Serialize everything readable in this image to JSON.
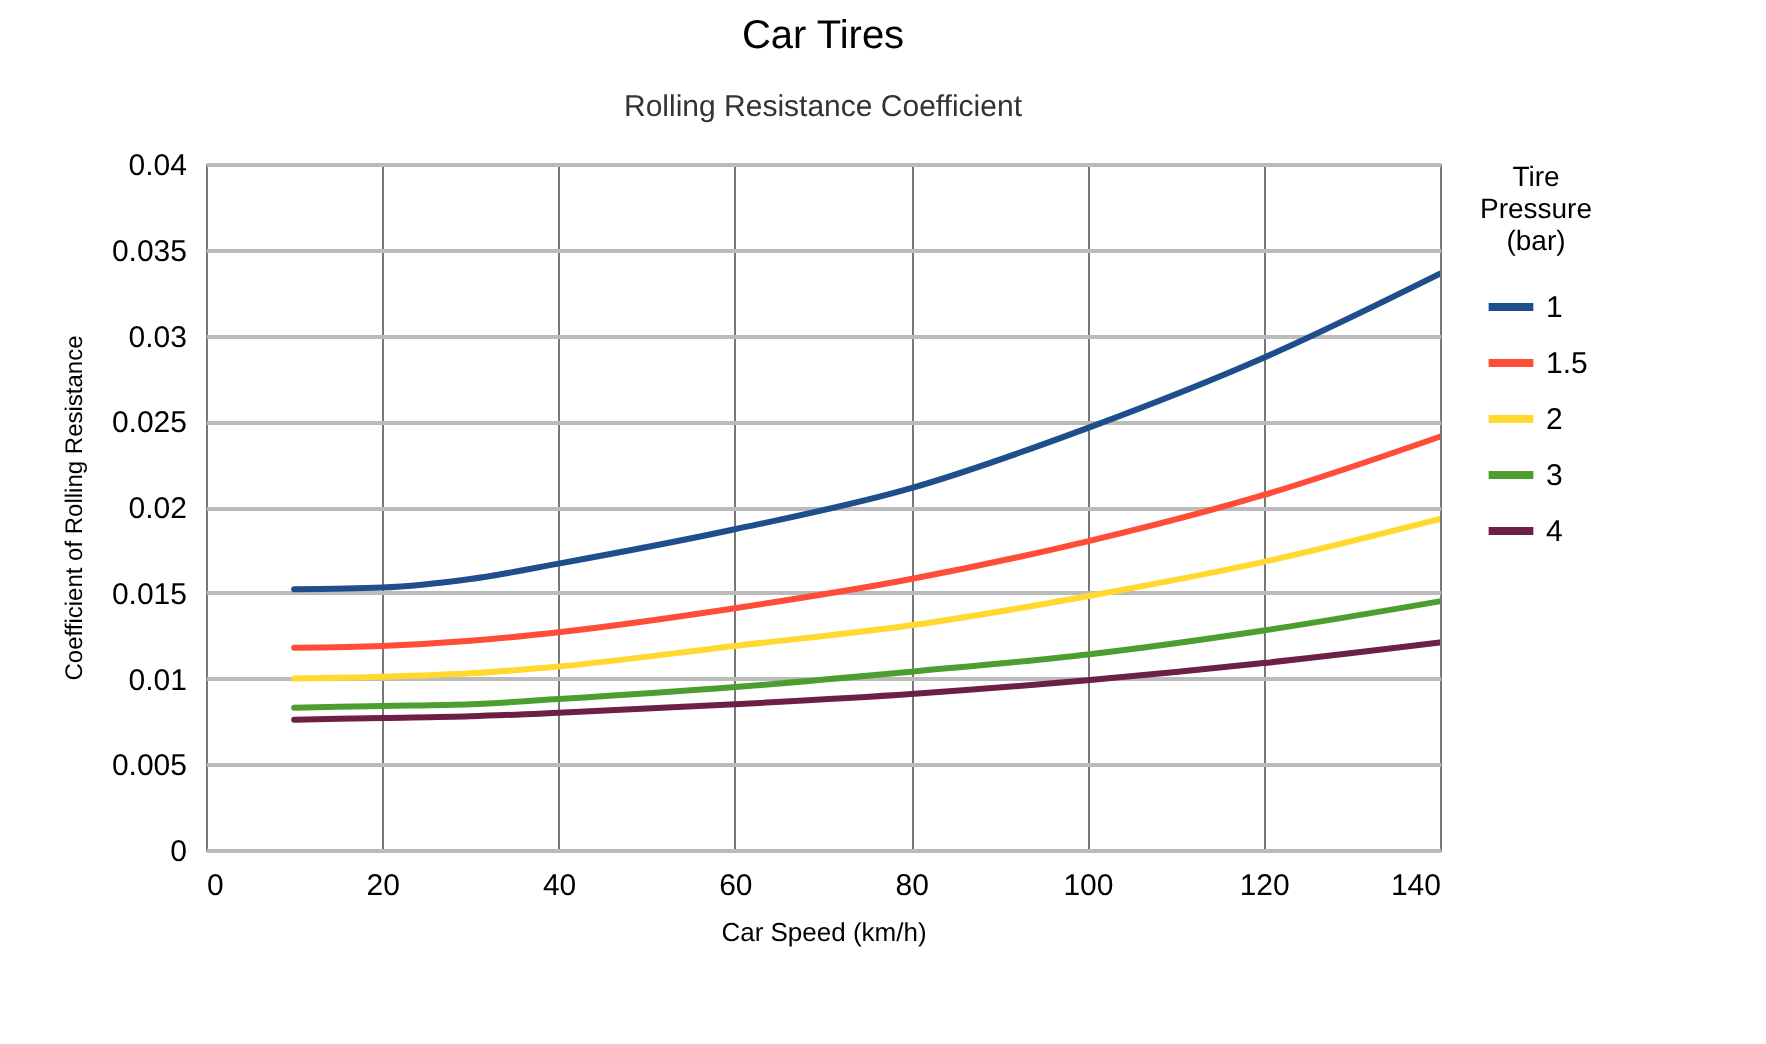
{
  "chart_data": {
    "type": "line",
    "title": "Car Tires",
    "subtitle": "Rolling Resistance Coefficient",
    "xlabel": "Car Speed (km/h)",
    "ylabel": "Coefficient of Rolling Resistance",
    "legend_title": "Tire Pressure (bar)",
    "x": [
      10,
      20,
      30,
      40,
      60,
      80,
      100,
      120,
      140
    ],
    "series": [
      {
        "name": "1",
        "color": "#1f4e8c",
        "values": [
          0.0152,
          0.0153,
          0.0158,
          0.0167,
          0.0187,
          0.0211,
          0.0246,
          0.0287,
          0.0336
        ]
      },
      {
        "name": "1.5",
        "color": "#ff4d38",
        "values": [
          0.0118,
          0.0119,
          0.0122,
          0.0127,
          0.0141,
          0.0158,
          0.018,
          0.0207,
          0.0241
        ]
      },
      {
        "name": "2",
        "color": "#ffd92f",
        "values": [
          0.01,
          0.0101,
          0.0103,
          0.0107,
          0.0119,
          0.0131,
          0.0148,
          0.0168,
          0.0193
        ]
      },
      {
        "name": "3",
        "color": "#4c9e2f",
        "values": [
          0.0083,
          0.0084,
          0.0085,
          0.0088,
          0.0095,
          0.0104,
          0.0114,
          0.0128,
          0.0145
        ]
      },
      {
        "name": "4",
        "color": "#6e1f45",
        "values": [
          0.0076,
          0.0077,
          0.0078,
          0.008,
          0.0085,
          0.0091,
          0.0099,
          0.0109,
          0.0121
        ]
      }
    ],
    "xlim": [
      0,
      140
    ],
    "xticks": [
      0,
      20,
      40,
      60,
      80,
      100,
      120,
      140
    ],
    "ylim": [
      0,
      0.04
    ],
    "yticks": [
      0,
      0.005,
      0.01,
      0.015,
      0.02,
      0.025,
      0.03,
      0.035,
      0.04
    ],
    "grid": true,
    "legend": "right",
    "marker": "none",
    "line_style": "solid"
  }
}
